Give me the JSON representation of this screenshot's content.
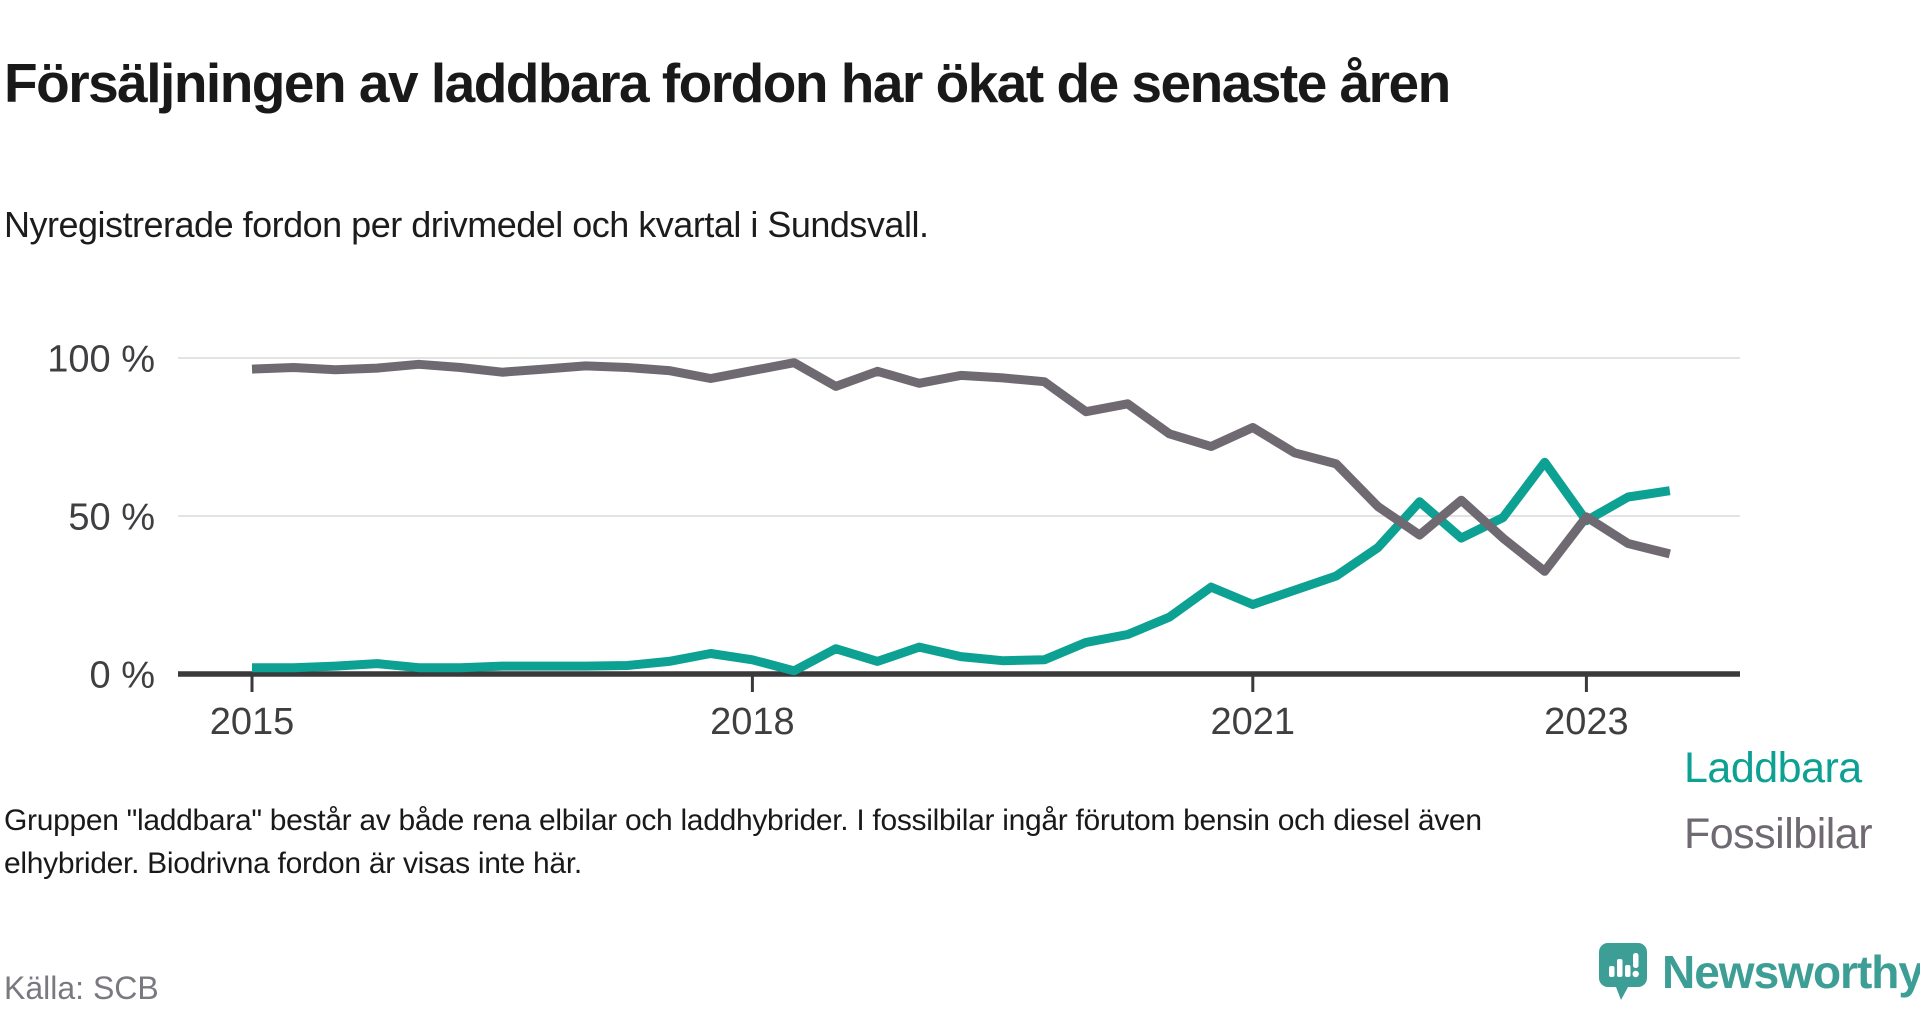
{
  "header": {
    "title": "Försäljningen av laddbara fordon har ökat de senaste åren",
    "subtitle": "Nyregistrerade fordon per drivmedel och kvartal i Sundsvall."
  },
  "chart_data": {
    "type": "line",
    "unit": "%",
    "grid": "horizontal",
    "ylim": [
      0,
      100
    ],
    "legend_position": "line-end-labels",
    "categories": [
      "2015Q1",
      "2015Q2",
      "2015Q3",
      "2015Q4",
      "2016Q1",
      "2016Q2",
      "2016Q3",
      "2016Q4",
      "2017Q1",
      "2017Q2",
      "2017Q3",
      "2017Q4",
      "2018Q1",
      "2018Q2",
      "2018Q3",
      "2018Q4",
      "2019Q1",
      "2019Q2",
      "2019Q3",
      "2019Q4",
      "2020Q1",
      "2020Q2",
      "2020Q3",
      "2020Q4",
      "2021Q1",
      "2021Q2",
      "2021Q3",
      "2021Q4",
      "2022Q1",
      "2022Q2",
      "2022Q3",
      "2022Q4",
      "2023Q1",
      "2023Q2",
      "2023Q3"
    ],
    "series": [
      {
        "name": "Laddbara",
        "color": "#0ca192",
        "values": [
          2,
          2,
          2.5,
          3.3,
          2,
          2,
          2.5,
          2.5,
          2.5,
          2.7,
          4,
          6.5,
          4.5,
          1,
          8,
          4,
          8.5,
          5.5,
          4.2,
          4.5,
          10,
          12.5,
          18,
          27.5,
          22,
          26.5,
          31,
          40,
          54.5,
          43,
          49.5,
          67,
          48.5,
          56,
          58
        ]
      },
      {
        "name": "Fossilbilar",
        "color": "#6f6a71",
        "values": [
          96.5,
          97,
          96.3,
          96.8,
          98,
          97,
          95.5,
          96.5,
          97.5,
          97,
          96,
          93.5,
          96,
          98.5,
          91,
          95.8,
          92,
          94.5,
          93.7,
          92.5,
          83,
          85.5,
          76,
          72,
          78,
          70,
          66.5,
          53,
          44,
          55,
          43,
          32.5,
          49.7,
          41.3,
          38
        ]
      }
    ],
    "y_ticks": [
      {
        "label": "100 %",
        "value": 100
      },
      {
        "label": "50 %",
        "value": 50
      },
      {
        "label": "0 %",
        "value": 0
      }
    ],
    "x_ticks": [
      {
        "label": "2015",
        "index": 0
      },
      {
        "label": "2018",
        "index": 12
      },
      {
        "label": "2021",
        "index": 24
      },
      {
        "label": "2023",
        "index": 32
      }
    ]
  },
  "footer": {
    "note_lines": [
      "Gruppen \"laddbara\" består av både rena elbilar och laddhybrider. I fossilbilar ingår förutom bensin och diesel även",
      "elhybrider. Biodrivna fordon är visas inte här."
    ],
    "source": "Källa: SCB"
  },
  "branding": {
    "logo_text": "Newsworthy",
    "logo_color": "#3d9e95"
  }
}
